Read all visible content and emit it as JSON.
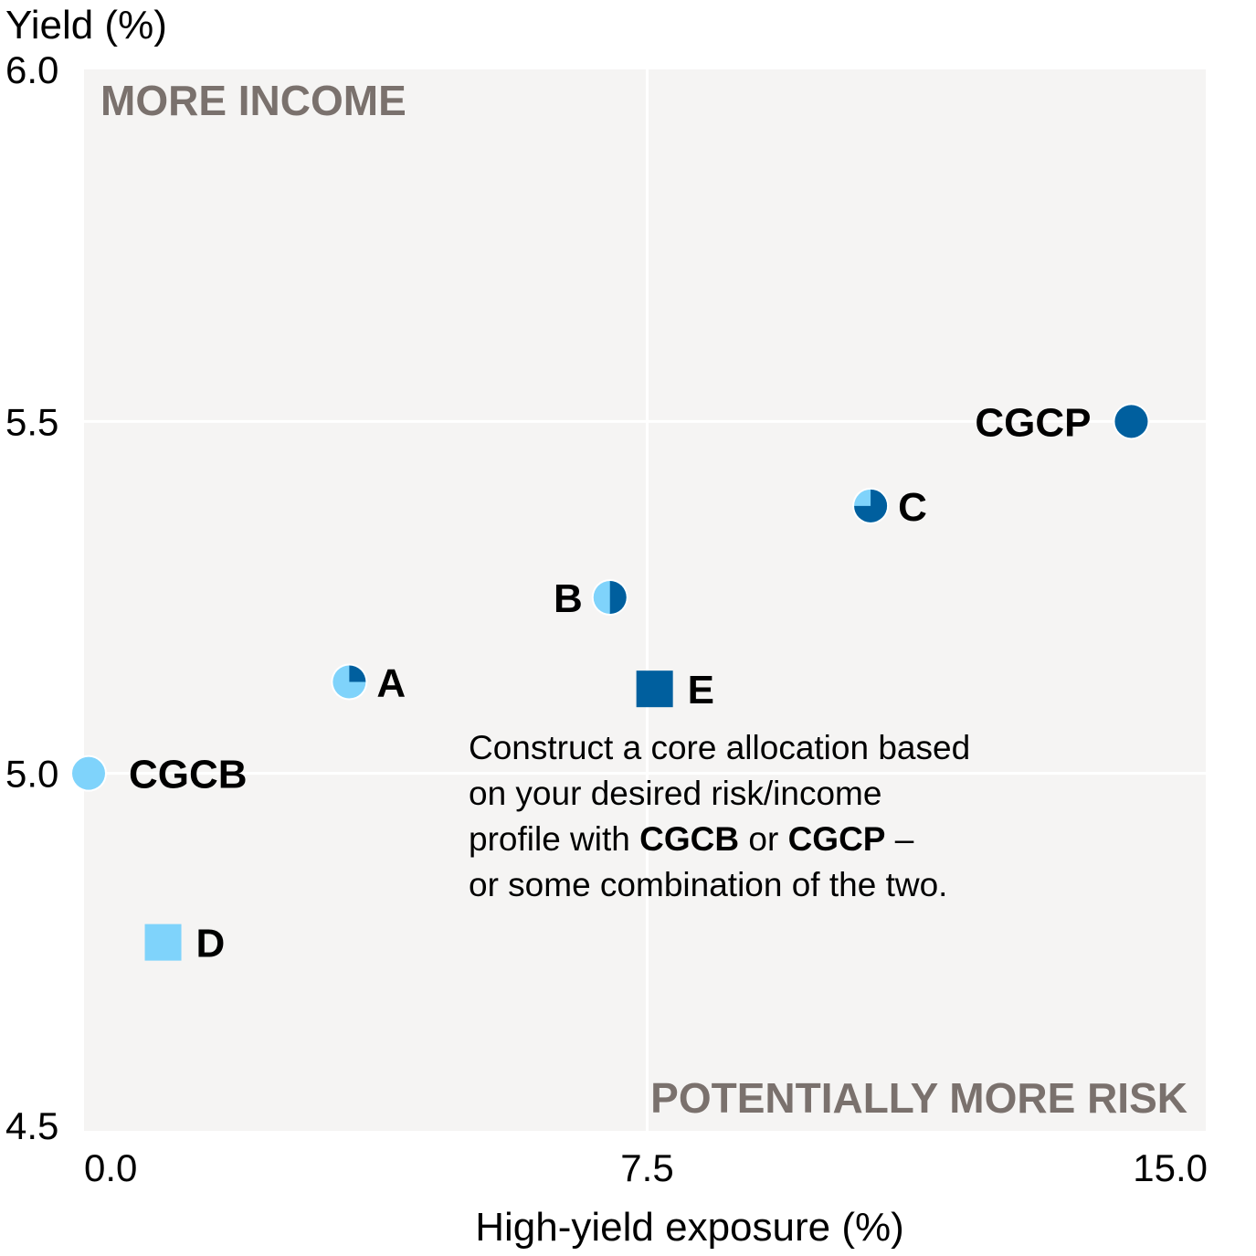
{
  "chart_data": {
    "type": "scatter",
    "ylabel": "Yield (%)",
    "xlabel": "High-yield exposure (%)",
    "xlim": [
      0.0,
      15.0
    ],
    "ylim": [
      4.5,
      6.0
    ],
    "xticks": [
      "0.0",
      "7.5",
      "15.0"
    ],
    "yticks": [
      "6.0",
      "5.5",
      "5.0",
      "4.5"
    ],
    "corner_top_left": "MORE INCOME",
    "corner_bottom_right": "POTENTIALLY MORE RISK",
    "colors": {
      "light": "#7fd3fb",
      "dark": "#005f9e",
      "plot_bg": "#f5f4f3",
      "grid": "#ffffff",
      "corner_text": "#7a716d"
    },
    "points": [
      {
        "label": "CGCB",
        "x": 0.0,
        "y": 5.0,
        "shape": "circle",
        "dark_fraction": 0.0,
        "label_side": "right"
      },
      {
        "label": "A",
        "x": 3.5,
        "y": 5.13,
        "shape": "circle",
        "dark_fraction": 0.25,
        "label_side": "right"
      },
      {
        "label": "B",
        "x": 7.0,
        "y": 5.25,
        "shape": "circle",
        "dark_fraction": 0.5,
        "label_side": "left"
      },
      {
        "label": "C",
        "x": 10.5,
        "y": 5.38,
        "shape": "circle",
        "dark_fraction": 0.75,
        "label_side": "right"
      },
      {
        "label": "CGCP",
        "x": 14.0,
        "y": 5.5,
        "shape": "circle",
        "dark_fraction": 1.0,
        "label_side": "left"
      },
      {
        "label": "D",
        "x": 1.0,
        "y": 4.76,
        "shape": "square",
        "dark_fraction": 0.0,
        "label_side": "right"
      },
      {
        "label": "E",
        "x": 7.6,
        "y": 5.12,
        "shape": "square",
        "dark_fraction": 1.0,
        "label_side": "right"
      }
    ]
  },
  "note": {
    "line1": "Construct a core allocation based",
    "line2": "on your desired risk/income",
    "line3_pre": "profile with ",
    "line3_b1": "CGCB",
    "line3_mid": " or ",
    "line3_b2": "CGCP",
    "line3_post": " –",
    "line4": "or some combination of the two."
  }
}
